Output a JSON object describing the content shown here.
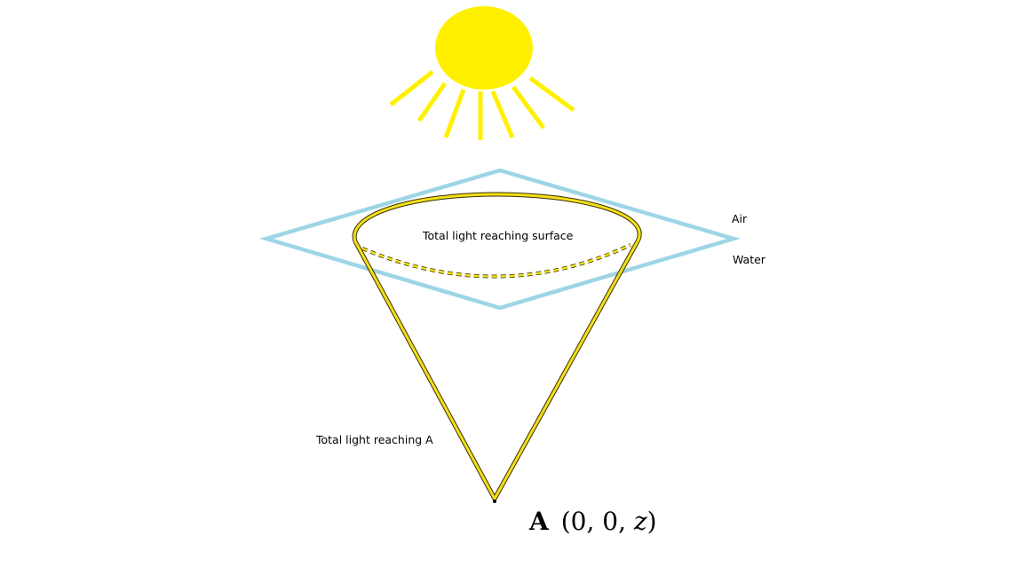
{
  "labels": {
    "surface": "Total light reaching surface",
    "air": "Air",
    "water": "Water",
    "reach_a": "Total light reaching A"
  },
  "point_label": {
    "name": "A",
    "coords_open": "(0, 0, ",
    "coords_var": "z",
    "coords_close": ")"
  },
  "colors": {
    "sun": "#FFF000",
    "surface_plane": "#9DD5E6",
    "cone": "#F2E01A",
    "cone_outline": "#3a3000",
    "point": "#000000"
  }
}
